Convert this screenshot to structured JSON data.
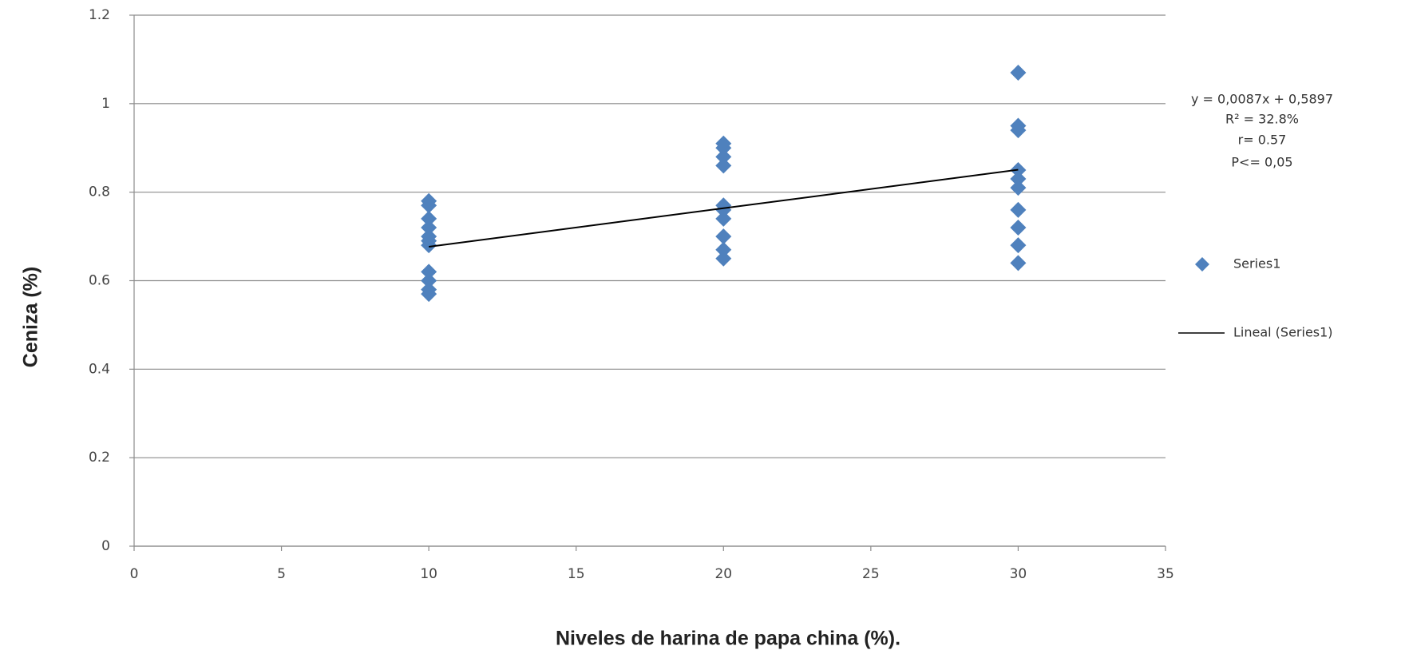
{
  "chart_data": {
    "type": "scatter",
    "x_label": "Niveles de harina de papa china (%).",
    "y_label": "Ceniza (%)",
    "annotation": [
      "y = 0,0087x + 0,5897",
      "R² = 32.8%",
      "r= 0.57",
      "P<= 0,05"
    ],
    "xlim": [
      0,
      35
    ],
    "xticks": [
      0,
      5,
      10,
      15,
      20,
      25,
      30,
      35
    ],
    "ylim": [
      0,
      1.2
    ],
    "yticks": [
      0,
      0.2,
      0.4,
      0.6,
      0.8,
      1,
      1.2
    ],
    "grid": true,
    "legend": "right",
    "series": [
      {
        "name": "Series1",
        "color": "#4f81bd",
        "type": "scatter",
        "x": [
          10,
          10,
          10,
          10,
          10,
          10,
          10,
          10,
          10,
          10,
          10,
          20,
          20,
          20,
          20,
          20,
          20,
          20,
          20,
          20,
          20,
          30,
          30,
          30,
          30,
          30,
          30,
          30,
          30,
          30,
          30
        ],
        "values": [
          0.78,
          0.77,
          0.74,
          0.72,
          0.7,
          0.69,
          0.68,
          0.62,
          0.6,
          0.58,
          0.57,
          0.91,
          0.9,
          0.88,
          0.86,
          0.77,
          0.76,
          0.74,
          0.7,
          0.67,
          0.65,
          1.07,
          0.95,
          0.94,
          0.85,
          0.83,
          0.81,
          0.76,
          0.72,
          0.68,
          0.64
        ]
      },
      {
        "name": "Lineal (Series1)",
        "color": "#000000",
        "type": "line",
        "x": [
          10,
          30
        ],
        "values": [
          0.6767,
          0.8507
        ]
      }
    ]
  }
}
